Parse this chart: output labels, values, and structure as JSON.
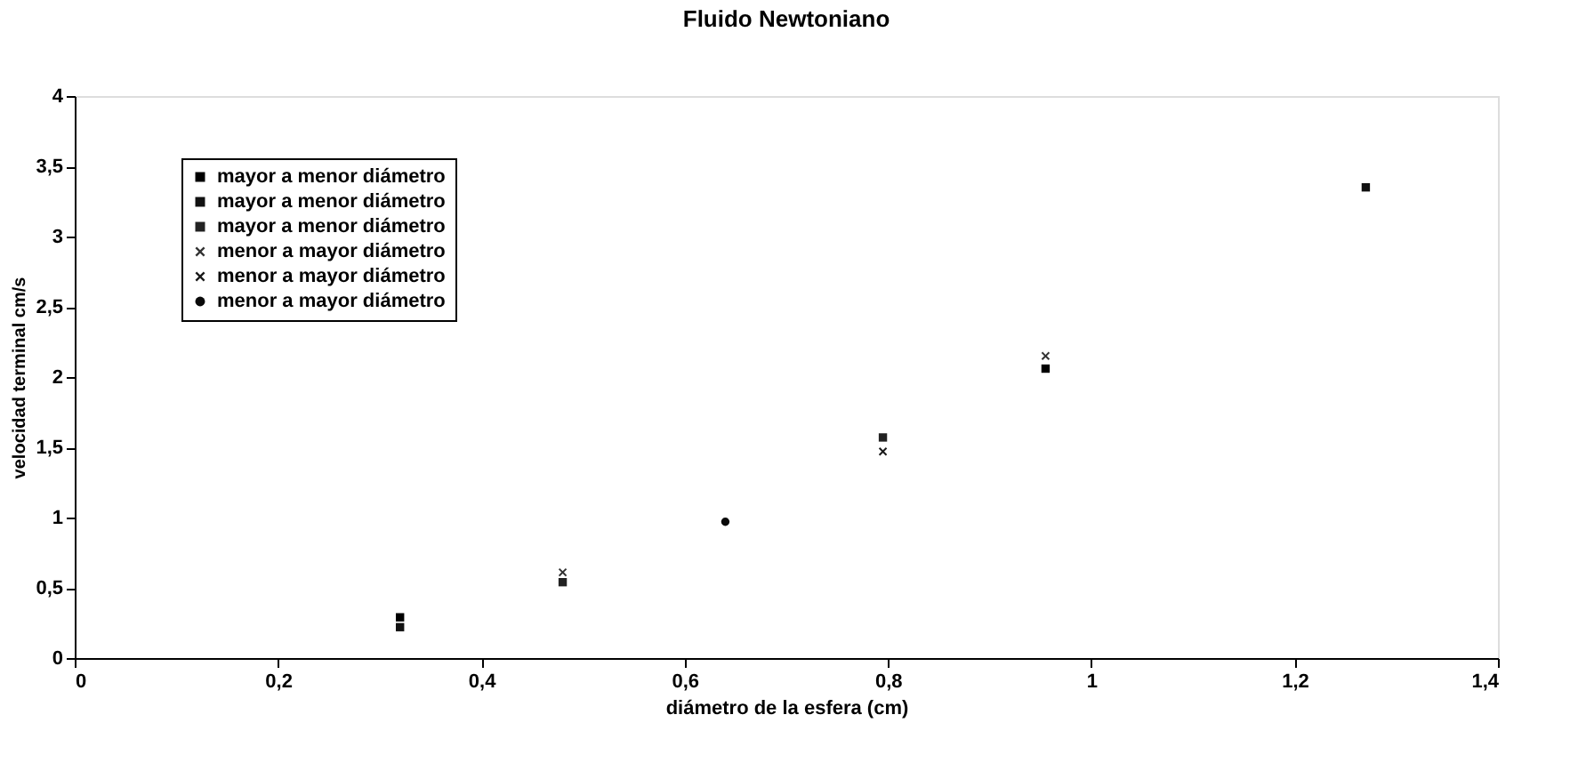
{
  "chart_data": {
    "type": "scatter",
    "title": "Fluido Newtoniano",
    "xlabel": "diámetro de la esfera (cm)",
    "ylabel": "velocidad terminal cm/s",
    "x": [
      0.32,
      0.48,
      0.64,
      0.795,
      0.955,
      1.27
    ],
    "series": [
      {
        "name": "mayor a menor diámetro",
        "color": "#000000",
        "marker": "square",
        "values": [
          0.29,
          null,
          null,
          null,
          2.06,
          null
        ]
      },
      {
        "name": "mayor a menor diámetro",
        "color": "#111111",
        "marker": "square",
        "values": [
          0.22,
          null,
          null,
          null,
          null,
          3.35
        ]
      },
      {
        "name": "mayor a menor diámetro",
        "color": "#222222",
        "marker": "square",
        "values": [
          null,
          0.54,
          null,
          1.57,
          null,
          null
        ]
      },
      {
        "name": "menor a mayor diámetro",
        "color": "#333333",
        "marker": "cross",
        "values": [
          null,
          0.61,
          null,
          null,
          2.15,
          null
        ]
      },
      {
        "name": "menor a mayor diámetro",
        "color": "#1a1a1a",
        "marker": "cross",
        "values": [
          null,
          null,
          null,
          1.47,
          null,
          null
        ]
      },
      {
        "name": "menor a mayor diámetro",
        "color": "#0a0a0a",
        "marker": "circle",
        "values": [
          null,
          null,
          0.97,
          null,
          null,
          null
        ]
      }
    ],
    "xlim": [
      0,
      1.4
    ],
    "ylim": [
      0,
      4
    ],
    "xticks": [
      0,
      {
        "value": 0.2,
        "label": "0,2"
      },
      {
        "value": 0.4,
        "label": "0,4"
      },
      {
        "value": 0.6,
        "label": "0,6"
      },
      {
        "value": 0.8,
        "label": "0,8"
      },
      1,
      {
        "value": 1.2,
        "label": "1,2"
      },
      {
        "value": 1.4,
        "label": "1,4"
      }
    ],
    "yticks": [
      0,
      {
        "value": 0.5,
        "label": "0,5"
      },
      1,
      {
        "value": 1.5,
        "label": "1,5"
      },
      2,
      {
        "value": 2.5,
        "label": "2,5"
      },
      3,
      {
        "value": 3.5,
        "label": "3,5"
      },
      4
    ],
    "grid": false,
    "legend": "top left"
  }
}
